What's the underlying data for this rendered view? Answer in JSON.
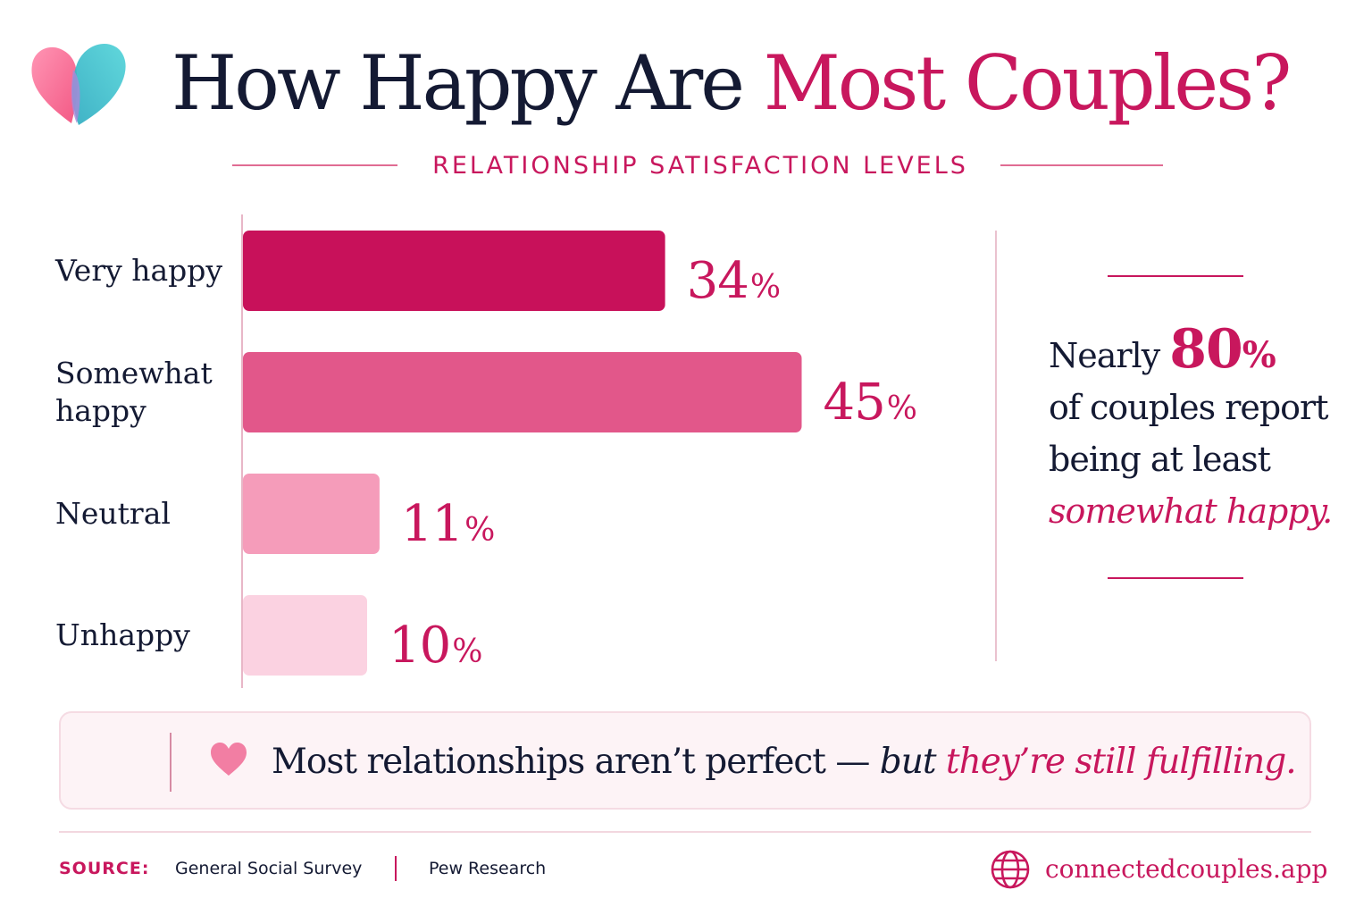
{
  "header": {
    "title_part1": "How Happy Are ",
    "title_part2": "Most Couples?",
    "subtitle": "RELATIONSHIP SATISFACTION LEVELS",
    "logo_icon": "heart-logo-icon"
  },
  "colors": {
    "accent": "#c8175d",
    "navy": "#141a33",
    "bar_colors": [
      "#c8115a",
      "#e2578a",
      "#f59cba",
      "#fbd2e1"
    ]
  },
  "chart_data": {
    "type": "bar",
    "orientation": "horizontal",
    "categories": [
      [
        "Very happy"
      ],
      [
        "Somewhat",
        "happy"
      ],
      [
        "Neutral"
      ],
      [
        "Unhappy"
      ]
    ],
    "values": [
      34,
      45,
      11,
      10
    ],
    "value_labels": [
      "34",
      "45",
      "11",
      "10"
    ],
    "unit": "%",
    "xlim": [
      0,
      80
    ],
    "grid": false,
    "legend": "none"
  },
  "callout": {
    "line1_prefix": "Nearly",
    "highlight_number": "80",
    "highlight_unit": "%",
    "line2": "of couples report",
    "line3": "being at least",
    "line4": "somewhat happy."
  },
  "banner": {
    "icon": "heart-icon",
    "text_main": "Most relationships aren’t perfect — ",
    "text_but": "but ",
    "text_accent": "they’re still fulfilling."
  },
  "footer": {
    "source_label": "SOURCE:",
    "sources": [
      "General Social Survey",
      "Pew Research"
    ],
    "website": "connectedcouples.app",
    "website_icon": "globe-icon"
  }
}
